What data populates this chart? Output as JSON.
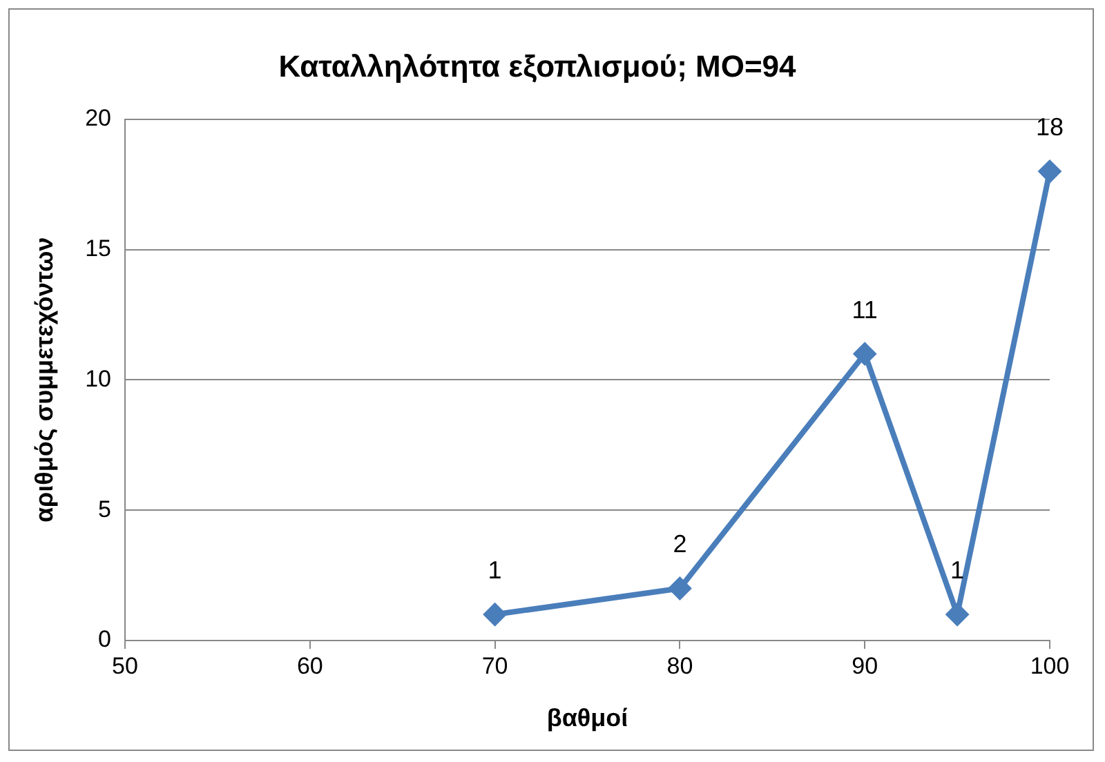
{
  "chart_data": {
    "type": "line",
    "title": "Καταλληλότητα εξοπλισμού; ΜΟ=94",
    "xlabel": "βαθμοί",
    "ylabel": "αριθμός συμμετεχόντων",
    "x": [
      70,
      80,
      90,
      95,
      100
    ],
    "series": [
      {
        "color": "#4a7ebb",
        "values": [
          1,
          2,
          11,
          1,
          18
        ]
      }
    ],
    "xlim": [
      50,
      100
    ],
    "xticks": [
      50,
      60,
      70,
      80,
      90,
      100
    ],
    "ylim": [
      0,
      20
    ],
    "yticks": [
      0,
      5,
      10,
      15,
      20
    ],
    "grid": "y",
    "legend": false,
    "marker": "diamond",
    "line_style": "solid",
    "data_labels": true
  }
}
